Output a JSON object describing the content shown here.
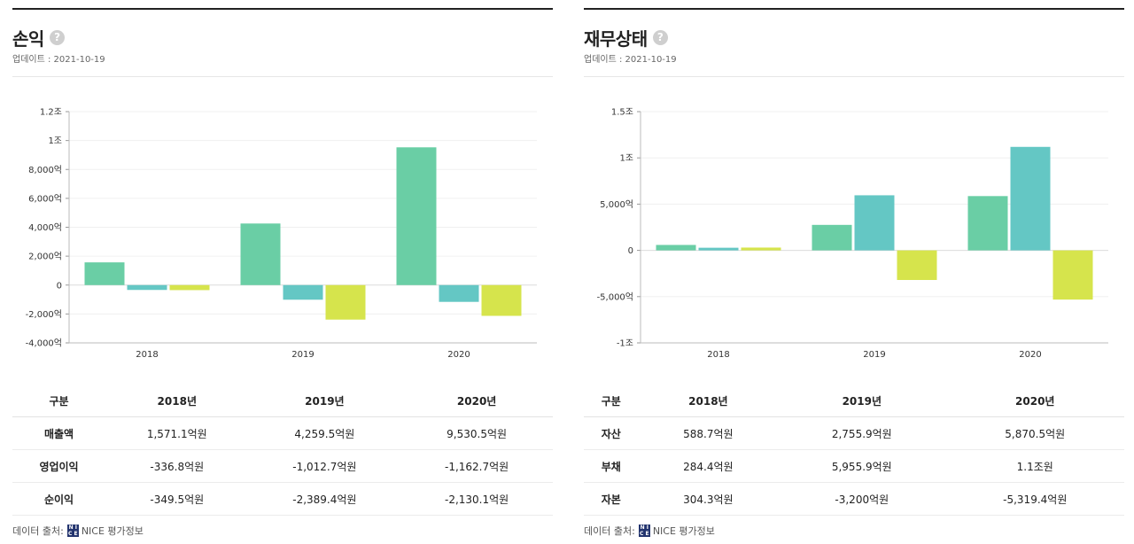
{
  "panels": [
    {
      "title": "손익",
      "help": "?",
      "updated": "업데이트 : 2021-10-19",
      "table": {
        "headers": [
          "구분",
          "2018년",
          "2019년",
          "2020년"
        ],
        "rows": [
          [
            "매출액",
            "1,571.1억원",
            "4,259.5억원",
            "9,530.5억원"
          ],
          [
            "영업이익",
            "-336.8억원",
            "-1,012.7억원",
            "-1,162.7억원"
          ],
          [
            "순이익",
            "-349.5억원",
            "-2,389.4억원",
            "-2,130.1억원"
          ]
        ]
      },
      "source_label": "데이터 출처:",
      "source_name": "NICE 평가정보"
    },
    {
      "title": "재무상태",
      "help": "?",
      "updated": "업데이트 : 2021-10-19",
      "table": {
        "headers": [
          "구분",
          "2018년",
          "2019년",
          "2020년"
        ],
        "rows": [
          [
            "자산",
            "588.7억원",
            "2,755.9억원",
            "5,870.5억원"
          ],
          [
            "부채",
            "284.4억원",
            "5,955.9억원",
            "1.1조원"
          ],
          [
            "자본",
            "304.3억원",
            "-3,200억원",
            "-5,319.4억원"
          ]
        ]
      },
      "source_label": "데이터 출처:",
      "source_name": "NICE 평가정보"
    }
  ],
  "colors": {
    "series1": "#62cba0",
    "series2": "#5cc4c1",
    "series3": "#d4e342"
  },
  "chart_data": [
    {
      "type": "bar",
      "title": "손익",
      "categories": [
        "2018",
        "2019",
        "2020"
      ],
      "series": [
        {
          "name": "매출액",
          "values": [
            1571.1,
            4259.5,
            9530.5
          ]
        },
        {
          "name": "영업이익",
          "values": [
            -336.8,
            -1012.7,
            -1162.7
          ]
        },
        {
          "name": "순이익",
          "values": [
            -349.5,
            -2389.4,
            -2130.1
          ]
        }
      ],
      "ylim": [
        -4000,
        12000
      ],
      "yticks": [
        {
          "v": 12000,
          "label": "1.2조"
        },
        {
          "v": 10000,
          "label": "1조"
        },
        {
          "v": 8000,
          "label": "8,000억"
        },
        {
          "v": 6000,
          "label": "6,000억"
        },
        {
          "v": 4000,
          "label": "4,000억"
        },
        {
          "v": 2000,
          "label": "2,000억"
        },
        {
          "v": 0,
          "label": "0"
        },
        {
          "v": -2000,
          "label": "-2,000억"
        },
        {
          "v": -4000,
          "label": "-4,000억"
        }
      ],
      "grid": true
    },
    {
      "type": "bar",
      "title": "재무상태",
      "categories": [
        "2018",
        "2019",
        "2020"
      ],
      "series": [
        {
          "name": "자산",
          "values": [
            588.7,
            2755.9,
            5870.5
          ]
        },
        {
          "name": "부채",
          "values": [
            284.4,
            5955.9,
            11190
          ]
        },
        {
          "name": "자본",
          "values": [
            304.3,
            -3200,
            -5319.4
          ]
        }
      ],
      "ylim": [
        -10000,
        15000
      ],
      "yticks": [
        {
          "v": 15000,
          "label": "1.5조"
        },
        {
          "v": 10000,
          "label": "1조"
        },
        {
          "v": 5000,
          "label": "5,000억"
        },
        {
          "v": 0,
          "label": "0"
        },
        {
          "v": -5000,
          "label": "-5,000억"
        },
        {
          "v": -10000,
          "label": "-1조"
        }
      ],
      "grid": true
    }
  ]
}
